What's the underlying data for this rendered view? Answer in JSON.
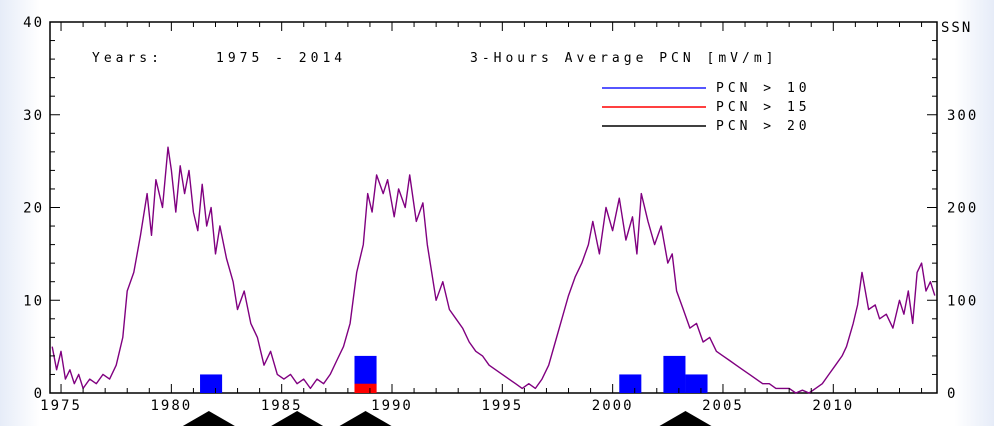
{
  "chart_data": {
    "type": "line",
    "header": {
      "years_label": "Years:",
      "years_range": "1975 - 2014",
      "measure": "3-Hours Average PCN [mV/m]"
    },
    "right_axis_title": "SSN",
    "xlim": [
      1974.5,
      2014.7
    ],
    "xticks": [
      1975,
      1980,
      1985,
      1990,
      1995,
      2000,
      2005,
      2010
    ],
    "y_left_lim": [
      0,
      40
    ],
    "y_left_ticks": [
      0,
      10,
      20,
      30,
      40
    ],
    "y_right_lim": [
      0,
      400
    ],
    "y_right_ticks": [
      0,
      100,
      200,
      300
    ],
    "y_right_tick_labels": [
      "0",
      "100",
      "200",
      "300"
    ],
    "legend": {
      "placement": "top-right",
      "entries": [
        {
          "label": "PCN > 10",
          "color": "#1f1fff"
        },
        {
          "label": "PCN > 15",
          "color": "#ff0000"
        },
        {
          "label": "PCN > 20",
          "color": "#000000"
        }
      ]
    },
    "ssn_series": {
      "name": "SSN",
      "color": "#800080",
      "points": [
        [
          1974.6,
          50
        ],
        [
          1974.8,
          25
        ],
        [
          1975.0,
          45
        ],
        [
          1975.2,
          15
        ],
        [
          1975.4,
          25
        ],
        [
          1975.6,
          10
        ],
        [
          1975.8,
          20
        ],
        [
          1976.0,
          5
        ],
        [
          1976.3,
          15
        ],
        [
          1976.6,
          10
        ],
        [
          1976.9,
          20
        ],
        [
          1977.2,
          15
        ],
        [
          1977.5,
          30
        ],
        [
          1977.8,
          60
        ],
        [
          1978.0,
          110
        ],
        [
          1978.3,
          130
        ],
        [
          1978.6,
          170
        ],
        [
          1978.9,
          215
        ],
        [
          1979.1,
          170
        ],
        [
          1979.3,
          230
        ],
        [
          1979.6,
          200
        ],
        [
          1979.85,
          265
        ],
        [
          1980.0,
          240
        ],
        [
          1980.2,
          195
        ],
        [
          1980.4,
          245
        ],
        [
          1980.6,
          215
        ],
        [
          1980.8,
          240
        ],
        [
          1981.0,
          195
        ],
        [
          1981.2,
          175
        ],
        [
          1981.4,
          225
        ],
        [
          1981.6,
          180
        ],
        [
          1981.8,
          200
        ],
        [
          1982.0,
          150
        ],
        [
          1982.2,
          180
        ],
        [
          1982.5,
          145
        ],
        [
          1982.8,
          120
        ],
        [
          1983.0,
          90
        ],
        [
          1983.3,
          110
        ],
        [
          1983.6,
          75
        ],
        [
          1983.9,
          60
        ],
        [
          1984.2,
          30
        ],
        [
          1984.5,
          45
        ],
        [
          1984.8,
          20
        ],
        [
          1985.1,
          15
        ],
        [
          1985.4,
          20
        ],
        [
          1985.7,
          10
        ],
        [
          1986.0,
          15
        ],
        [
          1986.3,
          5
        ],
        [
          1986.6,
          15
        ],
        [
          1986.9,
          10
        ],
        [
          1987.2,
          20
        ],
        [
          1987.5,
          35
        ],
        [
          1987.8,
          50
        ],
        [
          1988.1,
          75
        ],
        [
          1988.4,
          130
        ],
        [
          1988.7,
          160
        ],
        [
          1988.9,
          215
        ],
        [
          1989.1,
          195
        ],
        [
          1989.3,
          235
        ],
        [
          1989.6,
          215
        ],
        [
          1989.8,
          230
        ],
        [
          1990.1,
          190
        ],
        [
          1990.3,
          220
        ],
        [
          1990.6,
          200
        ],
        [
          1990.8,
          235
        ],
        [
          1991.1,
          185
        ],
        [
          1991.4,
          205
        ],
        [
          1991.6,
          160
        ],
        [
          1991.8,
          130
        ],
        [
          1992.0,
          100
        ],
        [
          1992.3,
          120
        ],
        [
          1992.6,
          90
        ],
        [
          1992.9,
          80
        ],
        [
          1993.2,
          70
        ],
        [
          1993.5,
          55
        ],
        [
          1993.8,
          45
        ],
        [
          1994.1,
          40
        ],
        [
          1994.4,
          30
        ],
        [
          1994.7,
          25
        ],
        [
          1995.0,
          20
        ],
        [
          1995.3,
          15
        ],
        [
          1995.6,
          10
        ],
        [
          1995.9,
          5
        ],
        [
          1996.2,
          10
        ],
        [
          1996.5,
          5
        ],
        [
          1996.8,
          15
        ],
        [
          1997.1,
          30
        ],
        [
          1997.4,
          55
        ],
        [
          1997.7,
          80
        ],
        [
          1998.0,
          105
        ],
        [
          1998.3,
          125
        ],
        [
          1998.6,
          140
        ],
        [
          1998.9,
          160
        ],
        [
          1999.1,
          185
        ],
        [
          1999.4,
          150
        ],
        [
          1999.7,
          200
        ],
        [
          2000.0,
          175
        ],
        [
          2000.3,
          210
        ],
        [
          2000.6,
          165
        ],
        [
          2000.9,
          190
        ],
        [
          2001.1,
          150
        ],
        [
          2001.3,
          215
        ],
        [
          2001.6,
          185
        ],
        [
          2001.9,
          160
        ],
        [
          2002.2,
          180
        ],
        [
          2002.5,
          140
        ],
        [
          2002.7,
          150
        ],
        [
          2002.9,
          110
        ],
        [
          2003.2,
          90
        ],
        [
          2003.5,
          70
        ],
        [
          2003.8,
          75
        ],
        [
          2004.1,
          55
        ],
        [
          2004.4,
          60
        ],
        [
          2004.7,
          45
        ],
        [
          2005.0,
          40
        ],
        [
          2005.3,
          35
        ],
        [
          2005.6,
          30
        ],
        [
          2005.9,
          25
        ],
        [
          2006.2,
          20
        ],
        [
          2006.5,
          15
        ],
        [
          2006.8,
          10
        ],
        [
          2007.1,
          10
        ],
        [
          2007.4,
          5
        ],
        [
          2007.7,
          5
        ],
        [
          2008.0,
          5
        ],
        [
          2008.3,
          0
        ],
        [
          2008.6,
          3
        ],
        [
          2008.9,
          0
        ],
        [
          2009.2,
          5
        ],
        [
          2009.5,
          10
        ],
        [
          2009.8,
          20
        ],
        [
          2010.1,
          30
        ],
        [
          2010.4,
          40
        ],
        [
          2010.6,
          50
        ],
        [
          2010.9,
          75
        ],
        [
          2011.1,
          95
        ],
        [
          2011.3,
          130
        ],
        [
          2011.6,
          90
        ],
        [
          2011.9,
          95
        ],
        [
          2012.1,
          80
        ],
        [
          2012.4,
          85
        ],
        [
          2012.7,
          70
        ],
        [
          2013.0,
          100
        ],
        [
          2013.2,
          85
        ],
        [
          2013.4,
          110
        ],
        [
          2013.6,
          75
        ],
        [
          2013.8,
          130
        ],
        [
          2014.0,
          140
        ],
        [
          2014.2,
          110
        ],
        [
          2014.4,
          120
        ],
        [
          2014.6,
          105
        ]
      ]
    },
    "pcn_bars": {
      "unit_note": "bar heights in PCN count units on the left axis",
      "bars": [
        {
          "x0": 1981.3,
          "x1": 1982.3,
          "value": 2,
          "color": "#0000ff"
        },
        {
          "x0": 1988.3,
          "x1": 1989.3,
          "value": 4,
          "color": "#0000ff"
        },
        {
          "x0": 1988.3,
          "x1": 1989.3,
          "value": 1,
          "color": "#ff0000"
        },
        {
          "x0": 2000.3,
          "x1": 2001.3,
          "value": 2,
          "color": "#0000ff"
        },
        {
          "x0": 2002.3,
          "x1": 2003.3,
          "value": 4,
          "color": "#0000ff"
        },
        {
          "x0": 2003.3,
          "x1": 2004.3,
          "value": 2,
          "color": "#0000ff"
        }
      ]
    },
    "event_markers": [
      1981.7,
      1985.7,
      1988.8,
      2003.3
    ]
  }
}
